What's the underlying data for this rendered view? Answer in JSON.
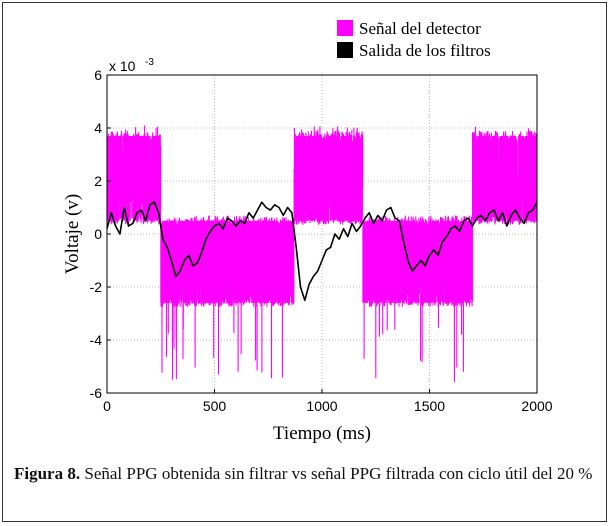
{
  "caption": {
    "label": "Figura 8.",
    "text": " Señal PPG obtenida sin filtrar vs señal PPG filtrada con ciclo útil del 20 %"
  },
  "chart_data": {
    "type": "line",
    "xlabel": "Tiempo (ms)",
    "ylabel": "Voltaje (v)",
    "y_multiplier": "x 10",
    "y_multiplier_exponent": "-3",
    "xlim": [
      0,
      2000
    ],
    "ylim": [
      -6,
      6
    ],
    "x_ticks": [
      "0",
      "500",
      "1000",
      "1500",
      "2000"
    ],
    "y_ticks": [
      "6",
      "4",
      "2",
      "0",
      "-2",
      "-4",
      "-6"
    ],
    "grid": true,
    "legend_position": "top-right",
    "series": [
      {
        "name": "Señal del detector",
        "color": "#ff00ff",
        "style": "dense switching signal",
        "segments": [
          {
            "x": [
              0,
              250
            ],
            "high": 3.7,
            "low": 0.5,
            "peak_max": 4.1
          },
          {
            "x": [
              250,
              870
            ],
            "high": 0.5,
            "low": -2.6,
            "peak_min": -5.6
          },
          {
            "x": [
              870,
              1190
            ],
            "high": 3.7,
            "low": 0.5,
            "peak_max": 4.1
          },
          {
            "x": [
              1190,
              1700
            ],
            "high": 0.5,
            "low": -2.6,
            "peak_min": -5.6
          },
          {
            "x": [
              1700,
              2000
            ],
            "high": 3.7,
            "low": 0.5,
            "peak_max": 4.1
          }
        ]
      },
      {
        "name": "Salida de los filtros",
        "color": "#000000",
        "x": [
          0,
          20,
          40,
          60,
          80,
          100,
          120,
          140,
          160,
          180,
          200,
          220,
          240,
          260,
          280,
          300,
          320,
          340,
          360,
          380,
          400,
          420,
          440,
          460,
          480,
          500,
          520,
          540,
          560,
          580,
          600,
          620,
          640,
          660,
          680,
          700,
          720,
          740,
          760,
          780,
          800,
          820,
          840,
          860,
          880,
          900,
          920,
          940,
          960,
          980,
          1000,
          1020,
          1040,
          1060,
          1080,
          1100,
          1120,
          1140,
          1160,
          1180,
          1200,
          1220,
          1240,
          1260,
          1280,
          1300,
          1320,
          1340,
          1360,
          1380,
          1400,
          1420,
          1440,
          1460,
          1480,
          1500,
          1520,
          1540,
          1560,
          1580,
          1600,
          1620,
          1640,
          1660,
          1680,
          1700,
          1720,
          1740,
          1760,
          1780,
          1800,
          1820,
          1840,
          1860,
          1880,
          1900,
          1920,
          1940,
          1960,
          1980,
          2000
        ],
        "y": [
          0.2,
          0.8,
          0.3,
          0.0,
          1.0,
          0.3,
          0.4,
          0.8,
          0.9,
          0.5,
          1.1,
          1.2,
          0.8,
          -0.2,
          -0.5,
          -1.0,
          -1.6,
          -1.4,
          -1.0,
          -0.8,
          -1.2,
          -1.1,
          -0.7,
          -0.2,
          0.1,
          0.3,
          0.4,
          0.2,
          0.6,
          0.5,
          0.3,
          0.5,
          0.4,
          0.8,
          0.6,
          0.9,
          1.2,
          1.0,
          0.9,
          1.1,
          1.0,
          0.7,
          1.0,
          0.8,
          -0.5,
          -2.0,
          -2.5,
          -1.9,
          -1.6,
          -1.4,
          -1.0,
          -0.6,
          -0.5,
          0.0,
          -0.2,
          0.2,
          -0.1,
          0.4,
          0.1,
          0.3,
          0.6,
          0.8,
          0.4,
          0.7,
          0.5,
          0.9,
          1.0,
          0.6,
          0.5,
          -0.3,
          -1.0,
          -1.4,
          -1.2,
          -1.0,
          -1.2,
          -0.8,
          -0.6,
          -0.8,
          -0.3,
          -0.1,
          0.2,
          0.3,
          0.1,
          0.5,
          0.6,
          0.3,
          0.6,
          0.7,
          0.5,
          0.8,
          0.9,
          0.5,
          0.8,
          0.3,
          0.7,
          0.9,
          0.6,
          0.4,
          0.8,
          0.9,
          1.2
        ]
      }
    ]
  }
}
